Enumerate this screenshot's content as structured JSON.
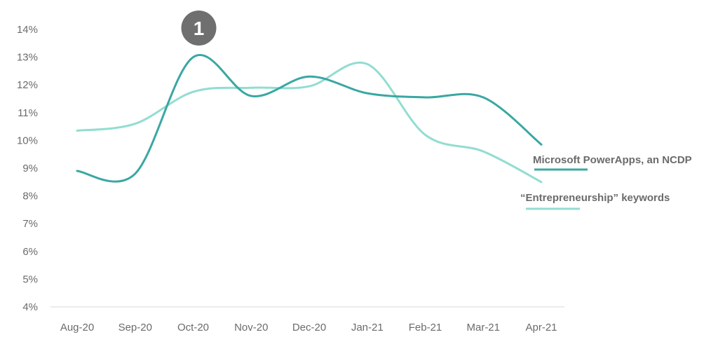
{
  "chart_data": {
    "type": "line",
    "categories": [
      "Aug-20",
      "Sep-20",
      "Oct-20",
      "Nov-20",
      "Dec-20",
      "Jan-21",
      "Feb-21",
      "Mar-21",
      "Apr-21"
    ],
    "y_ticks": [
      "4%",
      "5%",
      "6%",
      "7%",
      "8%",
      "9%",
      "10%",
      "11%",
      "12%",
      "13%",
      "14%"
    ],
    "ylim": [
      4,
      14
    ],
    "y_unit": "%",
    "grid": false,
    "series": [
      {
        "name": "Microsoft PowerApps, an NCDP",
        "values": [
          8.9,
          8.8,
          13.0,
          11.6,
          12.3,
          11.7,
          11.55,
          11.55,
          9.85
        ],
        "color": "#3aa7a3"
      },
      {
        "name": "“Entrepreneurship” keywords",
        "values": [
          10.35,
          10.6,
          11.75,
          11.9,
          11.95,
          12.75,
          10.2,
          9.6,
          8.5
        ],
        "color": "#92ddd1"
      }
    ],
    "annotations": [
      {
        "label": "1",
        "category": "Oct-20"
      }
    ],
    "legend_placement": "right"
  }
}
